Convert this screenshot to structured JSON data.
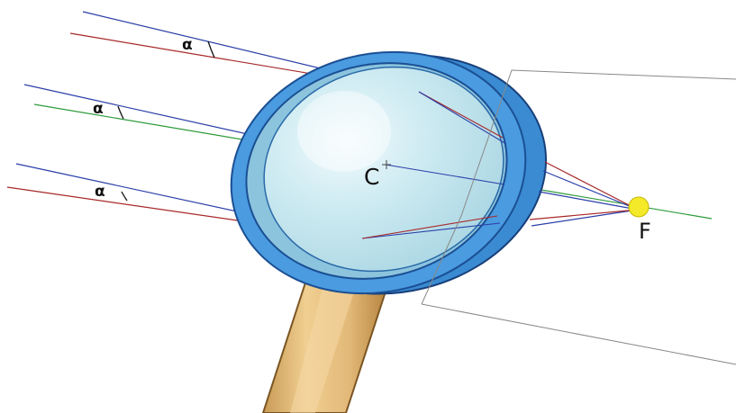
{
  "labels": {
    "center": "C",
    "focus": "F",
    "angle_top": "α",
    "angle_middle": "α",
    "angle_bottom": "α"
  },
  "colors": {
    "blue_ray": "#2b3fa8",
    "red_ray": "#a82828",
    "green_axis": "#2e9a3a",
    "lens_glass": "#cfeaf0",
    "lens_rim": "#3d8fd6",
    "lens_rim_dark": "#1b4f93",
    "handle": "#e2b877",
    "handle_dark": "#b08040",
    "focus_dot": "#f5ea2a"
  }
}
